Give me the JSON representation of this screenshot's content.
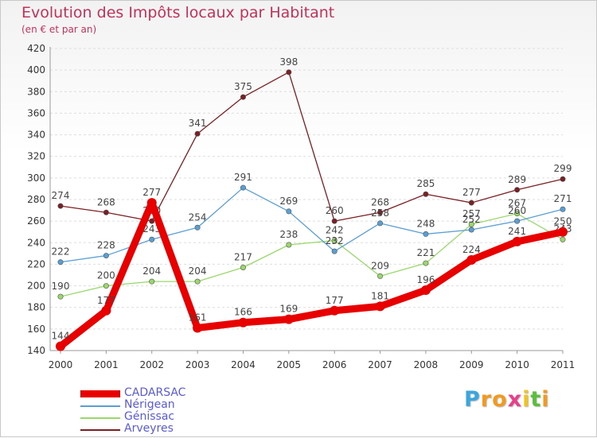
{
  "title": "Evolution des Impôts locaux par Habitant",
  "subtitle": "(en € et par an)",
  "chart_data": {
    "type": "line",
    "title": "Evolution des Impôts locaux par Habitant",
    "subtitle": "(en € et par an)",
    "xlabel": "",
    "ylabel": "",
    "ylim": [
      140,
      420
    ],
    "y_ticks": [
      "140",
      "160",
      "180",
      "200",
      "220",
      "240",
      "260",
      "280",
      "300",
      "320",
      "340",
      "360",
      "380",
      "400",
      "420"
    ],
    "categories": [
      "2000",
      "2001",
      "2002",
      "2003",
      "2004",
      "2005",
      "2006",
      "2007",
      "2008",
      "2009",
      "2010",
      "2011"
    ],
    "grid": true,
    "legend_position": "bottom-left",
    "series": [
      {
        "name": "Arveyres",
        "color": "#7a1f24",
        "values": [
          274,
          268,
          260,
          341,
          375,
          398,
          260,
          268,
          285,
          277,
          289,
          299
        ]
      },
      {
        "name": "Génissac",
        "color": "#9ad86b",
        "values": [
          190,
          200,
          204,
          204,
          217,
          238,
          242,
          209,
          221,
          257,
          267,
          243
        ]
      },
      {
        "name": "Nérigean",
        "color": "#5a9fd4",
        "values": [
          222,
          228,
          243,
          254,
          291,
          269,
          232,
          258,
          248,
          252,
          260,
          271
        ]
      },
      {
        "name": "CADARSAC",
        "color": "#e80000",
        "values": [
          144,
          177,
          277,
          161,
          166,
          169,
          177,
          181,
          196,
          224,
          241,
          250
        ]
      }
    ]
  },
  "legend": [
    {
      "name": "CADARSAC",
      "color": "#e80000"
    },
    {
      "name": "Nérigean",
      "color": "#5a9fd4"
    },
    {
      "name": "Génissac",
      "color": "#9ad86b"
    },
    {
      "name": "Arveyres",
      "color": "#7a1f24"
    }
  ],
  "logo": {
    "letters": [
      "P",
      "r",
      "o",
      "x",
      "i",
      "t",
      "i"
    ],
    "colors": [
      "#3aa6dd",
      "#f29a1f",
      "#f29a1f",
      "#e83e8c",
      "#f2c31f",
      "#5bbf3c",
      "#f29a1f"
    ]
  }
}
